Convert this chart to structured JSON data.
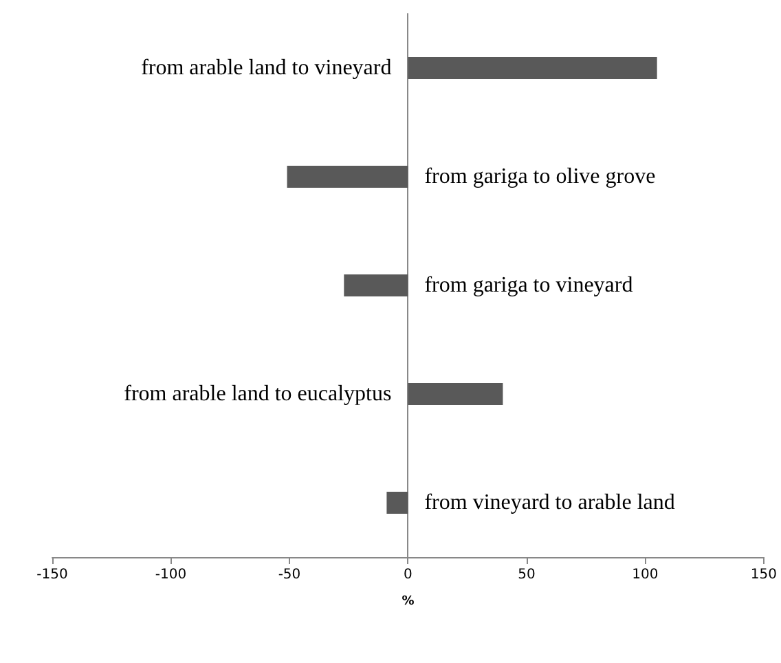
{
  "chart_data": {
    "type": "bar",
    "orientation": "horizontal",
    "xlabel": "%",
    "categories": [
      "from arable land to vineyard",
      "from gariga to olive grove",
      "from gariga to vineyard",
      "from arable land to eucalyptus",
      "from vineyard to arable land"
    ],
    "values": [
      105,
      -51,
      -27,
      40,
      -9
    ],
    "color": "#595959",
    "xlim": [
      -150,
      150
    ],
    "xticks": [
      -150,
      -100,
      -50,
      0,
      50,
      100,
      150
    ],
    "grid": false
  }
}
